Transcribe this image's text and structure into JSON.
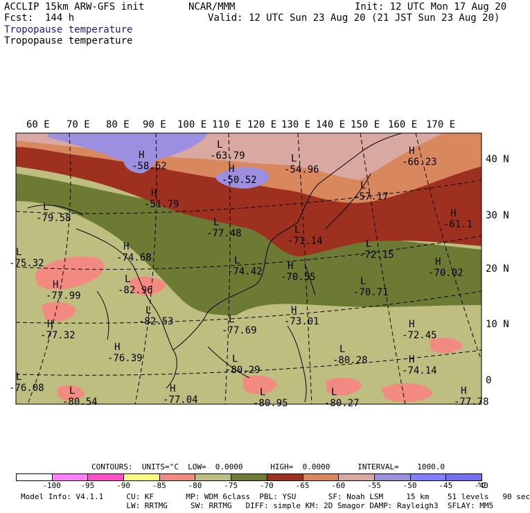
{
  "header": {
    "model": "ACCLIP 15km ARW-GFS init",
    "fcst": "Fcst:  144 h",
    "org": "NCAR/MMM",
    "init": "Init: 12 UTC Mon 17 Aug 20",
    "valid": "Valid: 12 UTC Sun 23 Aug 20 (21 JST Sun 23 Aug 20)",
    "field_title_blue": "Tropopause temperature",
    "field_title_black": "Tropopause temperature",
    "title_color": "#1a1a8a"
  },
  "map": {
    "lon_labels": [
      "60 E",
      "70 E",
      "80 E",
      "90 E",
      "100 E",
      "110 E",
      "120 E",
      "130 E",
      "140 E",
      "150 E",
      "160 E",
      "170 E"
    ],
    "lat_labels": [
      "40 N",
      "30 N",
      "20 N",
      "10 N",
      "0"
    ],
    "markers": [
      {
        "sym": "L",
        "value": "-63.79"
      },
      {
        "sym": "H",
        "value": "-58.62"
      },
      {
        "sym": "L",
        "value": "-54.96"
      },
      {
        "sym": "H",
        "value": "-50.52"
      },
      {
        "sym": "H",
        "value": "-66.23"
      },
      {
        "sym": "L",
        "value": "-57.17"
      },
      {
        "sym": "H",
        "value": "-51.79"
      },
      {
        "sym": "L",
        "value": "-79.58"
      },
      {
        "sym": "L",
        "value": "-77.48"
      },
      {
        "sym": "H",
        "value": "-61.1"
      },
      {
        "sym": "L",
        "value": "-71.14"
      },
      {
        "sym": "L",
        "value": "-75.32"
      },
      {
        "sym": "H",
        "value": "-74.68"
      },
      {
        "sym": "L",
        "value": "-72.15"
      },
      {
        "sym": "L",
        "value": "-74.42"
      },
      {
        "sym": "H",
        "value": "-70.55"
      },
      {
        "sym": "H",
        "value": "-70.02"
      },
      {
        "sym": "H",
        "value": "-77.99"
      },
      {
        "sym": "L",
        "value": "-82.96"
      },
      {
        "sym": "L",
        "value": "-70.71"
      },
      {
        "sym": "H",
        "value": "-73.01"
      },
      {
        "sym": "L",
        "value": "-82.53"
      },
      {
        "sym": "L",
        "value": "-77.69"
      },
      {
        "sym": "H",
        "value": "-77.32"
      },
      {
        "sym": "H",
        "value": "-72.45"
      },
      {
        "sym": "H",
        "value": "-76.39"
      },
      {
        "sym": "L",
        "value": "-80.28"
      },
      {
        "sym": "L",
        "value": "-80.29"
      },
      {
        "sym": "H",
        "value": "-74.14"
      },
      {
        "sym": "L",
        "value": "-76.08"
      },
      {
        "sym": "L",
        "value": "-80.54"
      },
      {
        "sym": "H",
        "value": "-77.04"
      },
      {
        "sym": "L",
        "value": "-80.95"
      },
      {
        "sym": "L",
        "value": "-80.27"
      },
      {
        "sym": "H",
        "value": "-77.78"
      }
    ]
  },
  "legend": {
    "contours_line": "CONTOURS:  UNITS=°C  LOW=  0.0000      HIGH=  0.0000      INTERVAL=    1000.0",
    "bins": [
      {
        "color": "#ffffff"
      },
      {
        "color": "#ff80ff"
      },
      {
        "color": "#ff50c8"
      },
      {
        "color": "#ffff80"
      },
      {
        "color": "#f28a82"
      },
      {
        "color": "#bebe80"
      },
      {
        "color": "#6d7a34"
      },
      {
        "color": "#9e3020"
      },
      {
        "color": "#d9875c"
      },
      {
        "color": "#d9a8a0"
      },
      {
        "color": "#9d8fe0"
      },
      {
        "color": "#7f7fff"
      },
      {
        "color": "#7070f0"
      }
    ],
    "tick_labels": [
      "-100",
      "-95",
      "-90",
      "-85",
      "-80",
      "-75",
      "-70",
      "-65",
      "-60",
      "-55",
      "-50",
      "-45",
      "-40"
    ],
    "unit_label": "°C"
  },
  "model_info": {
    "line1": "Model Info: V4.1.1     CU: KF       MP: WDM 6class  PBL: YSU       SF: Noah LSM     15 km    51 levels   90 sec",
    "line2": "                       LW: RRTMG     SW: RRTMG   DIFF: simple KM: 2D Smagor DAMP: Rayleigh3  SFLAY: MM5"
  },
  "colors": {
    "olive_light": "#bebe80",
    "olive_dark": "#6d7a34",
    "rust": "#9e3020",
    "orange": "#d9875c",
    "pink_tan": "#d9a8a0",
    "lavender": "#9d8fe0",
    "salmon": "#f28a82"
  }
}
